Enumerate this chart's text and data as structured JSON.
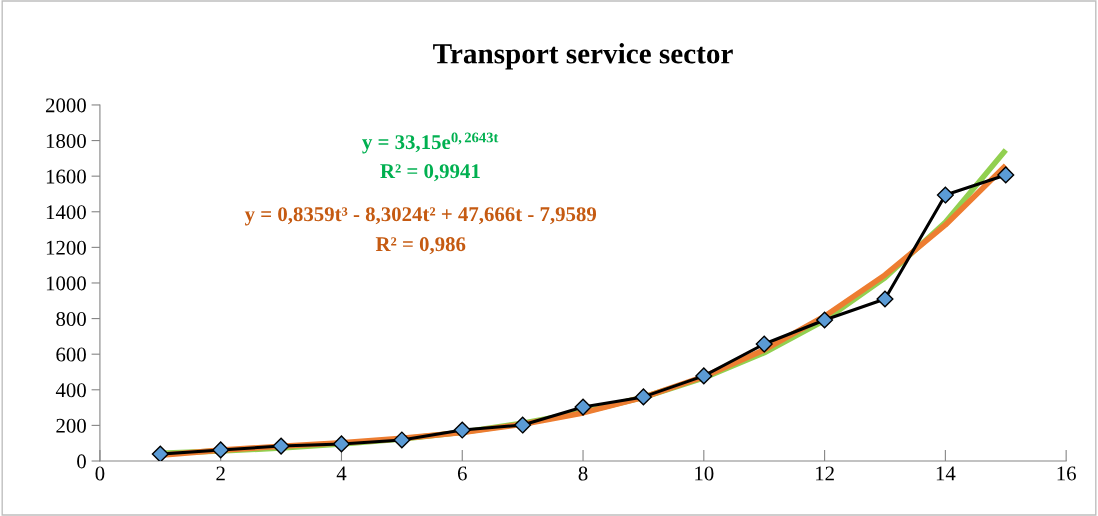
{
  "chart_data": {
    "type": "line",
    "title": "Transport service sector",
    "x": [
      1,
      2,
      3,
      4,
      5,
      6,
      7,
      8,
      9,
      10,
      11,
      12,
      13,
      14,
      15
    ],
    "series": [
      {
        "color": "#000000",
        "marker": "diamond",
        "values": [
          39,
          62,
          84,
          96,
          118,
          174,
          202,
          303,
          360,
          478,
          657,
          792,
          910,
          1494,
          1607
        ]
      },
      {
        "color": "#92d050",
        "values": [
          43,
          56,
          73,
          96,
          124,
          162,
          212,
          275,
          358,
          467,
          608,
          791,
          1030,
          1341,
          1747
        ]
      },
      {
        "color": "#ed7d31",
        "values": [
          32,
          61,
          83,
          103,
          127,
          160,
          206,
          270,
          358,
          474,
          624,
          813,
          1045,
          1326,
          1660
        ]
      }
    ],
    "annotations": [
      "y = 33,15e$^{0,2643t}$",
      "R² = 0,9941",
      "y = 0,8359t³ - 8,3024t² + 47,666t - 7,9589",
      "R² = 0,986"
    ],
    "xlim": [
      0,
      16
    ],
    "xticks": [
      0,
      2,
      4,
      6,
      8,
      10,
      12,
      14,
      16
    ],
    "ylim": [
      0,
      2000
    ],
    "yticks": [
      0,
      200,
      400,
      600,
      800,
      1000,
      1200,
      1400,
      1600,
      1800,
      2000
    ],
    "grid": false,
    "legend": false
  }
}
